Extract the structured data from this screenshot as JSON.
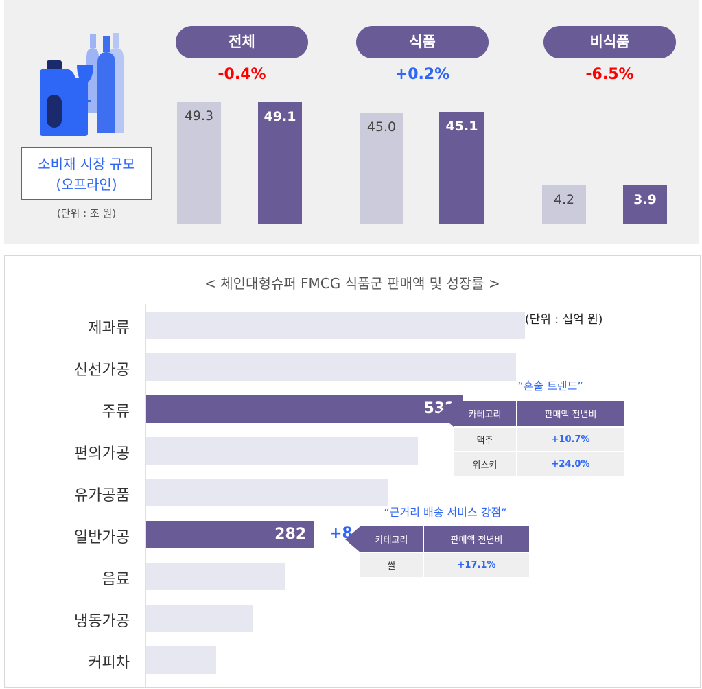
{
  "top": {
    "label_line1": "소비재 시장 규모",
    "label_line2": "(오프라인)",
    "unit": "(단위 : 조 원)",
    "icon": "consumer-goods-bottles-icon",
    "groups": [
      {
        "name": "전체",
        "change": "-0.4%",
        "prev": 49.3,
        "curr": 49.1,
        "prev_label": "49.3",
        "curr_label": "49.1"
      },
      {
        "name": "식품",
        "change": "+0.2%",
        "prev": 45.0,
        "curr": 45.1,
        "prev_label": "45.0",
        "curr_label": "45.1"
      },
      {
        "name": "비식품",
        "change": "-6.5%",
        "prev": 4.2,
        "curr": 3.9,
        "prev_label": "4.2",
        "curr_label": "3.9"
      }
    ]
  },
  "bottom": {
    "title": "< 체인대형슈퍼 FMCG 식품군 판매액 및 성장률 >",
    "unit": "(단위 : 십억 원)",
    "callouts": [
      {
        "title": "“혼술 트렌드”",
        "headers": [
          "카테고리",
          "판매액 전년비"
        ],
        "rows": [
          [
            "맥주",
            "+10.7%"
          ],
          [
            "위스키",
            "+24.0%"
          ]
        ]
      },
      {
        "title": "“근거리 배송 서비스 강점”",
        "headers": [
          "카테고리",
          "판매액 전년비"
        ],
        "rows": [
          [
            "쌀",
            "+17.1%"
          ]
        ]
      }
    ]
  },
  "colors": {
    "accent_purple": "#695b96",
    "light_bar": "#cbcbdb",
    "pale_bar": "#e7e7f1",
    "blue": "#2e66f5",
    "red": "#ff0000"
  },
  "chart_data": [
    {
      "type": "bar",
      "categories": [
        "전체",
        "식품",
        "비식품"
      ],
      "series": [
        {
          "values": [
            49.3,
            45.0,
            4.2
          ]
        },
        {
          "values": [
            49.1,
            45.1,
            3.9
          ]
        }
      ],
      "change": [
        "-0.4%",
        "+0.2%",
        "-6.5%"
      ],
      "ylabel": "(단위 : 조 원)"
    },
    {
      "type": "bar",
      "orientation": "horizontal",
      "title": "< 체인대형슈퍼 FMCG 식품군 판매액 및 성장률 >",
      "categories": [
        "제과류",
        "신선가공",
        "주류",
        "편의가공",
        "유가공품",
        "일반가공",
        "음료",
        "냉동가공",
        "커피차"
      ],
      "values": [
        635,
        620,
        532,
        455,
        405,
        282,
        232,
        178,
        117
      ],
      "value_labels": [
        null,
        null,
        "532",
        null,
        null,
        "282",
        null,
        null,
        null
      ],
      "growth": [
        null,
        null,
        "+9.2%",
        null,
        null,
        "+8.4%",
        null,
        null,
        null
      ],
      "xlim": [
        0,
        650
      ],
      "unit": "(단위 : 십억 원)"
    }
  ]
}
